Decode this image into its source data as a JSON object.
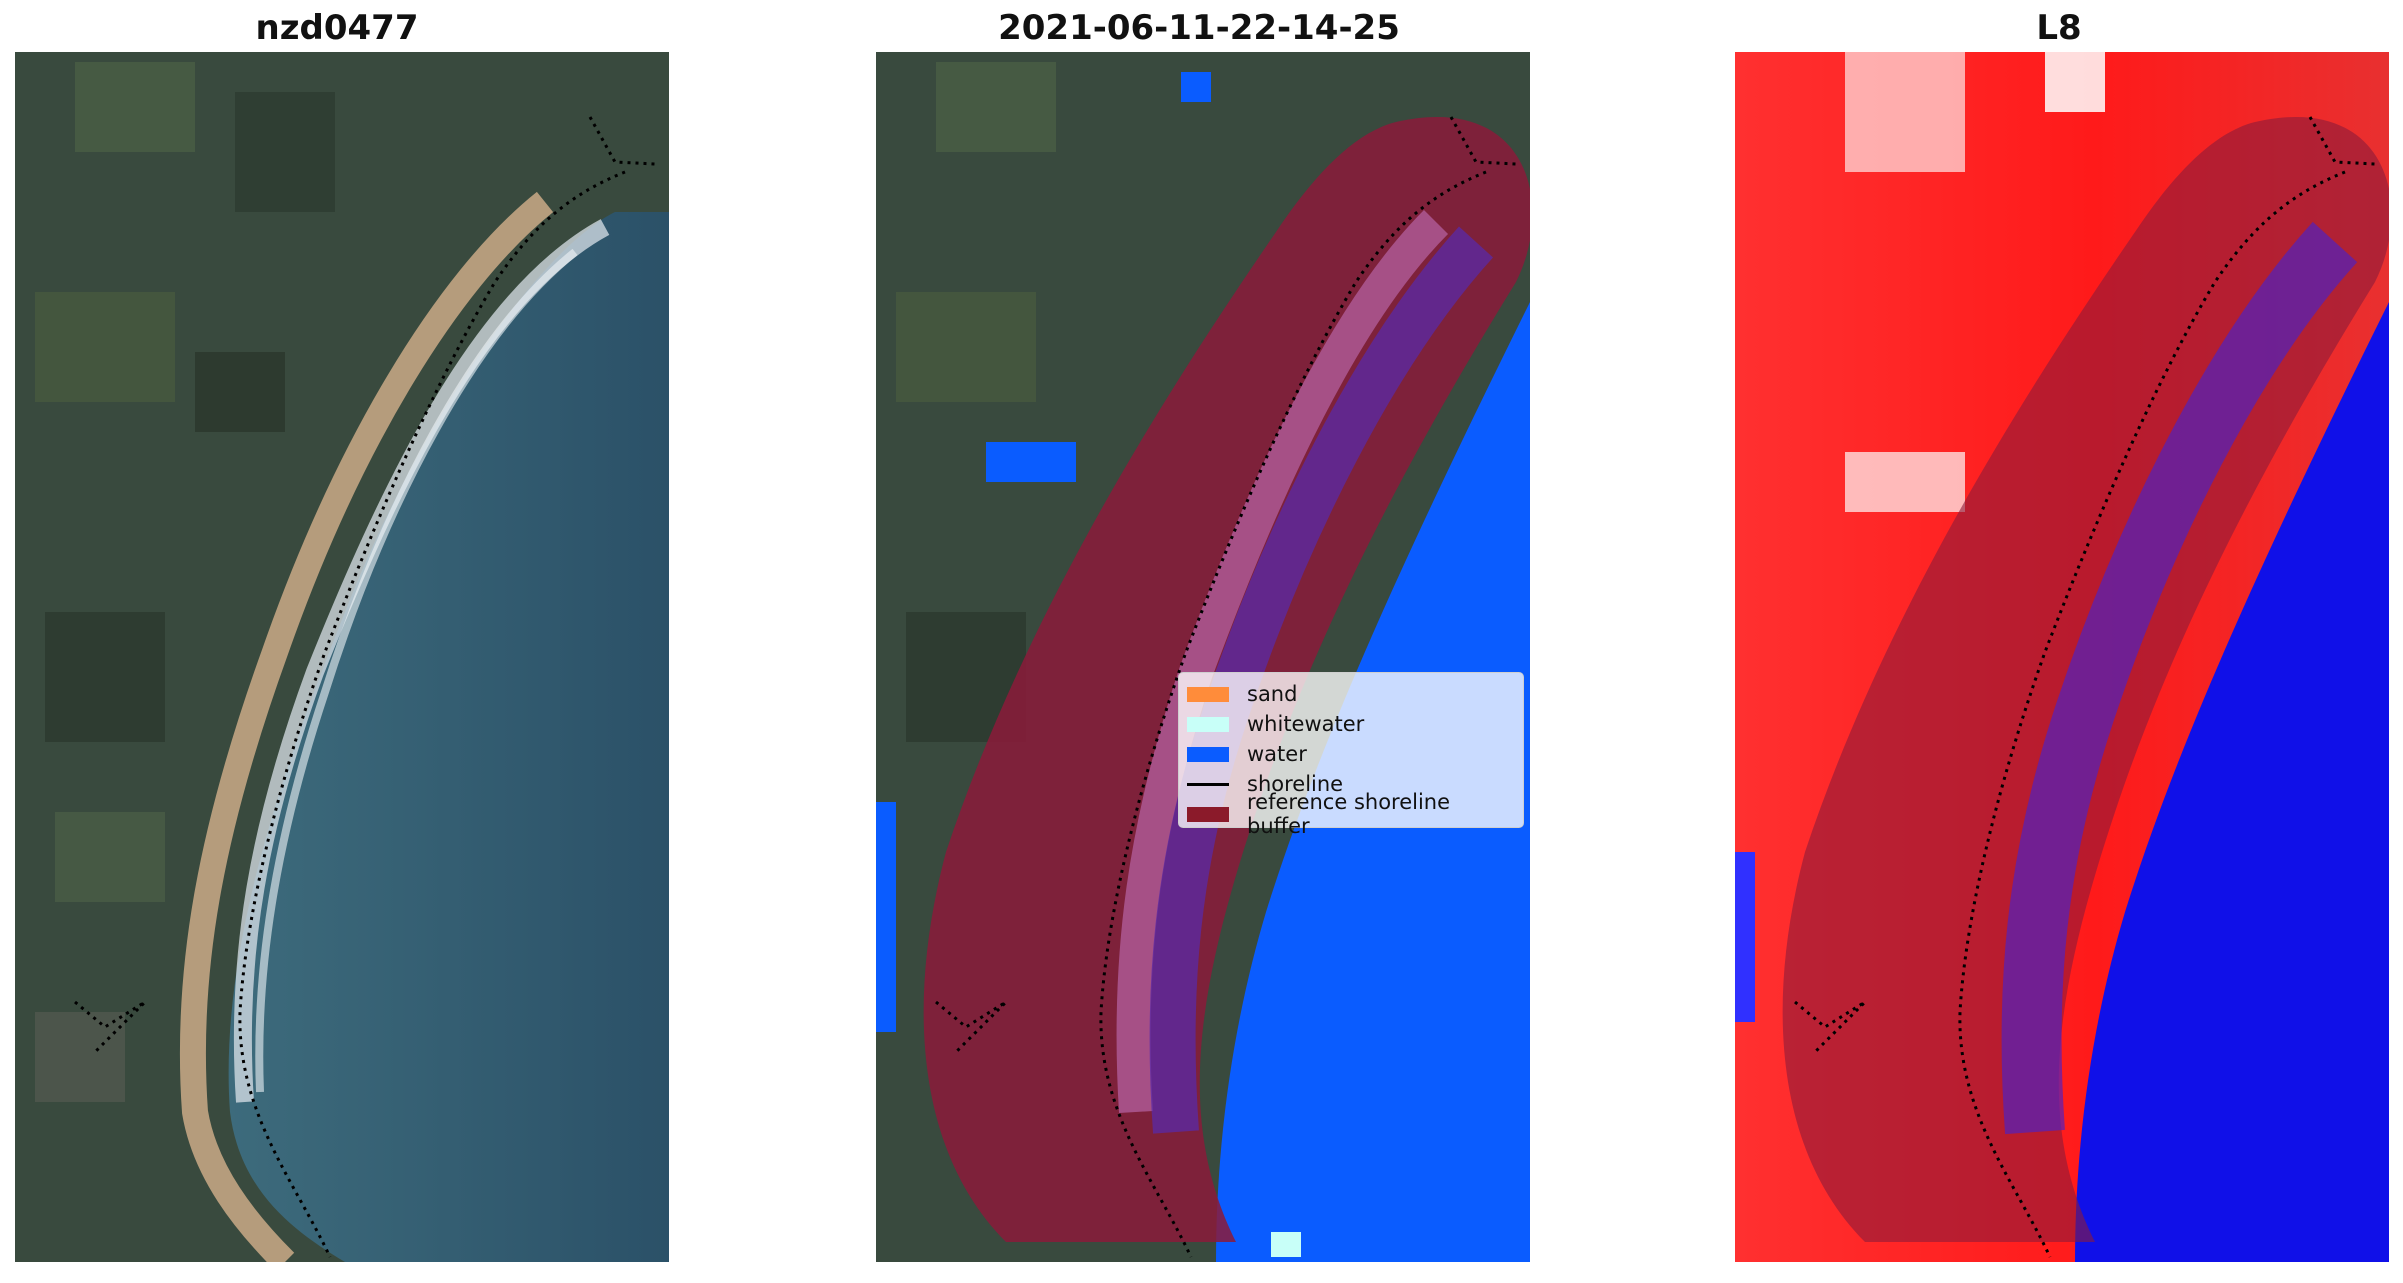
{
  "panels": [
    {
      "title": "nzd0477"
    },
    {
      "title": "2021-06-11-22-14-25"
    },
    {
      "title": "L8"
    }
  ],
  "legend": {
    "items": [
      {
        "label": "sand",
        "color": "#ff8c3a",
        "kind": "patch"
      },
      {
        "label": "whitewater",
        "color": "#c8fff8",
        "kind": "patch"
      },
      {
        "label": "water",
        "color": "#0a5cff",
        "kind": "patch"
      },
      {
        "label": "shoreline",
        "color": "#000000",
        "kind": "line"
      },
      {
        "label": "reference shoreline buffer",
        "color": "#8b1a2a",
        "kind": "patch"
      }
    ]
  },
  "colors": {
    "land": "#3a4a3c",
    "sea": "#2f5670",
    "water_class": "#0a5cff",
    "buffer": "#8b1a3a",
    "index_high": "#ff2020",
    "index_low": "#1010e8"
  }
}
